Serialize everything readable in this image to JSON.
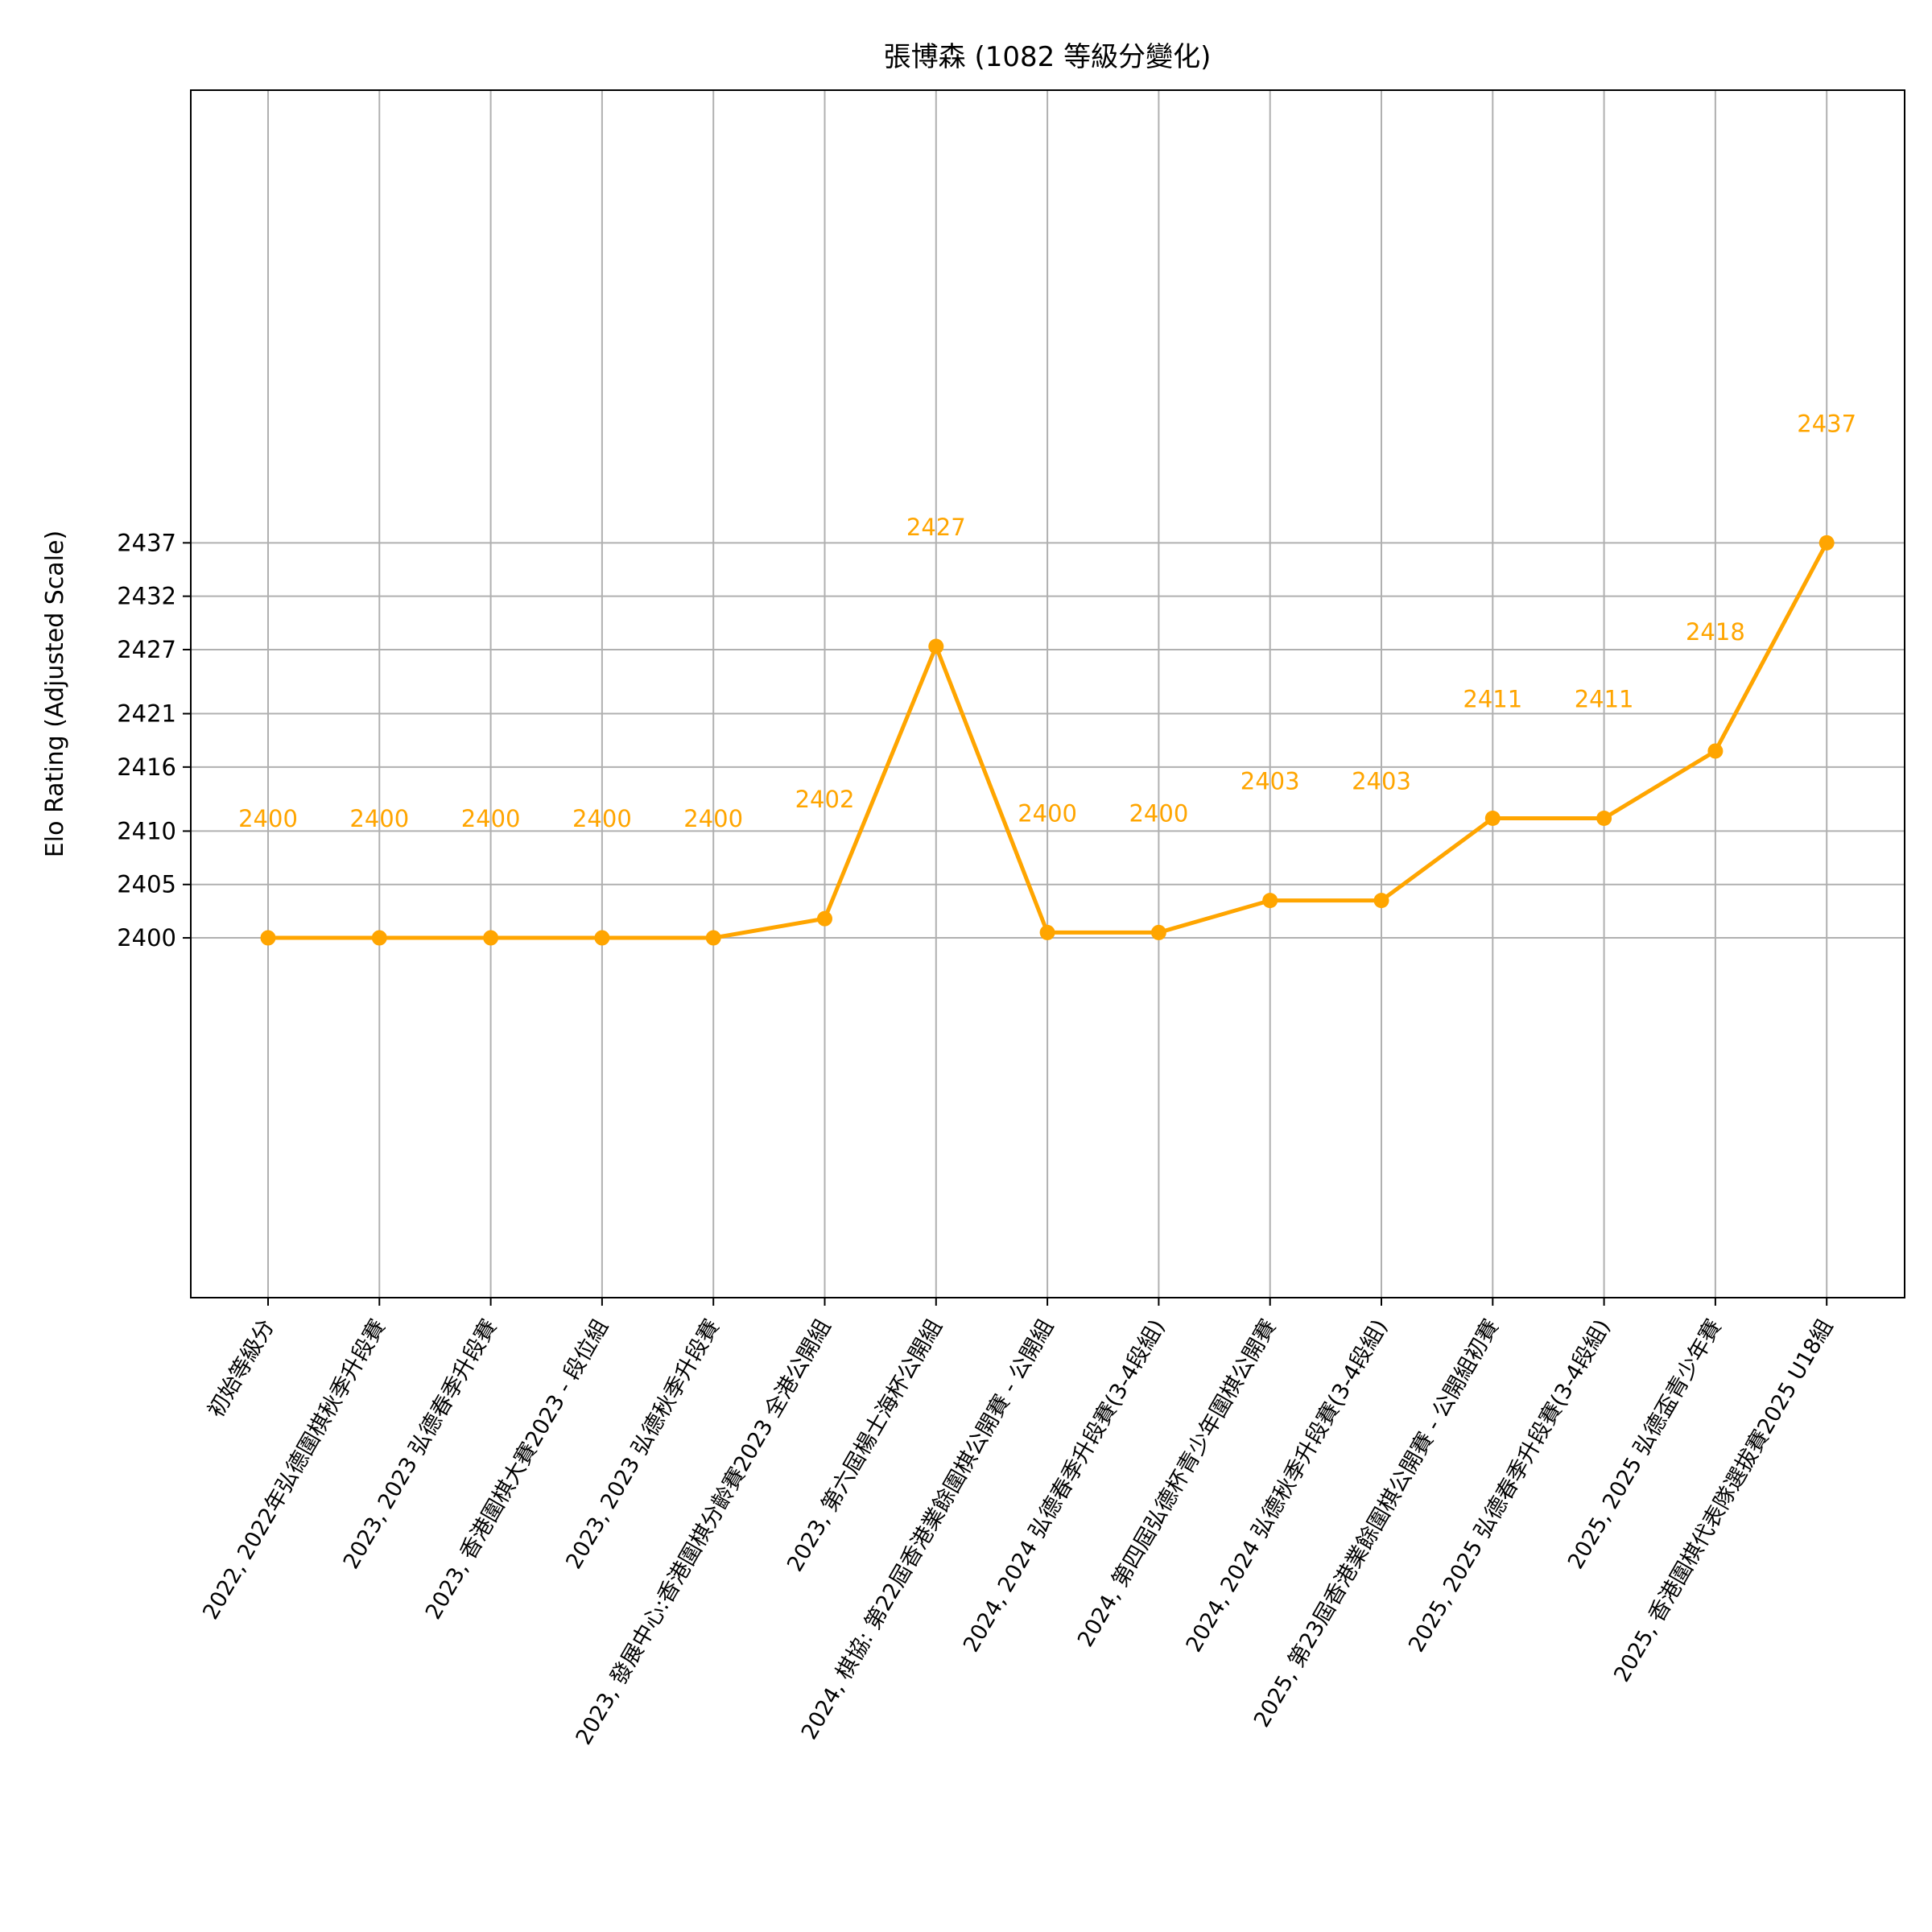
{
  "chart_data": {
    "type": "line",
    "title": "張博森 (1082 等級分變化)",
    "ylabel": "Elo Rating (Adjusted Scale)",
    "xlabel": "",
    "color": "#FFA500",
    "grid": true,
    "legend": "none",
    "ylim": [
      2366.3,
      2479.4
    ],
    "yticks": [
      2400,
      2405,
      2410,
      2416,
      2421,
      2427,
      2432,
      2437
    ],
    "categories": [
      "初始等級分",
      "2022, 2022年弘德圍棋秋季升段賽",
      "2023, 2023 弘德春季升段賽",
      "2023, 香港圍棋大賽2023 - 段位組",
      "2023, 2023 弘德秋季升段賽",
      "2023, 發展中心:香港圍棋分齡賽2023 全港公開組",
      "2023, 第六屆楊士海杯公開組",
      "2024, 棋協: 第22屆香港業餘圍棋公開賽 - 公開組",
      "2024, 2024 弘德春季升段賽(3-4段組)",
      "2024, 第四屆弘德杯青少年圍棋公開賽",
      "2024, 2024 弘德秋季升段賽(3-4段組)",
      "2025, 第23屆香港業餘圍棋公開賽 - 公開組初賽",
      "2025, 2025 弘德春季升段賽(3-4段組)",
      "2025, 2025 弘德盃青少年賽",
      "2025, 香港圍棋代表隊選拔賽2025 U18組"
    ],
    "values": [
      2400,
      2400,
      2400,
      2400,
      2400,
      2401.8,
      2427.3,
      2400.5,
      2400.5,
      2403.5,
      2403.5,
      2411.2,
      2411.2,
      2417.5,
      2437
    ],
    "data_labels": [
      "2400",
      "2400",
      "2400",
      "2400",
      "2400",
      "2402",
      "2427",
      "2400",
      "2400",
      "2403",
      "2403",
      "2411",
      "2411",
      "2418",
      "2437"
    ]
  }
}
